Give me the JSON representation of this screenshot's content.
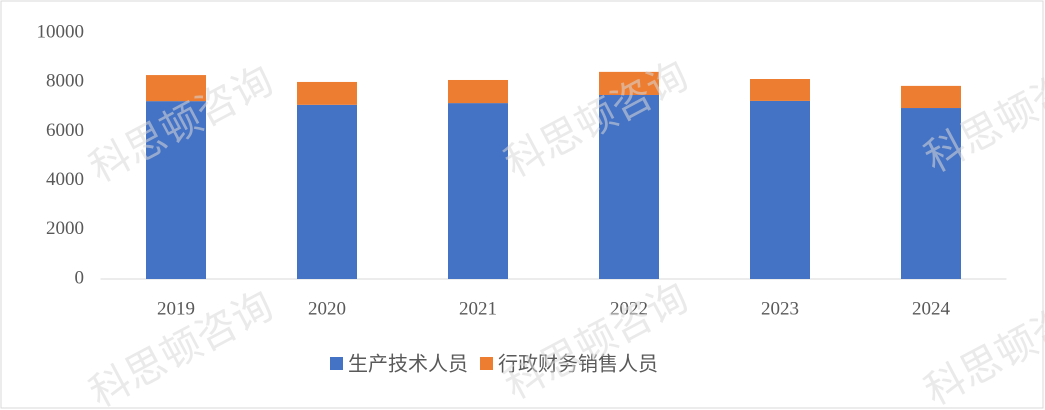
{
  "chart_data": {
    "type": "stacked_bar",
    "categories": [
      "2019",
      "2020",
      "2021",
      "2022",
      "2023",
      "2024"
    ],
    "series": [
      {
        "name": "生产技术人员",
        "color": "#4472c4",
        "values": [
          7230,
          7080,
          7150,
          7480,
          7240,
          6950
        ]
      },
      {
        "name": "行政财务销售人员",
        "color": "#ed7d31",
        "values": [
          1060,
          930,
          940,
          940,
          890,
          900
        ]
      }
    ],
    "ylim": [
      0,
      10000
    ],
    "yticks": [
      0,
      2000,
      4000,
      6000,
      8000,
      10000
    ],
    "grid": false,
    "legend": "bottom",
    "watermark": "科思顿咨询"
  }
}
